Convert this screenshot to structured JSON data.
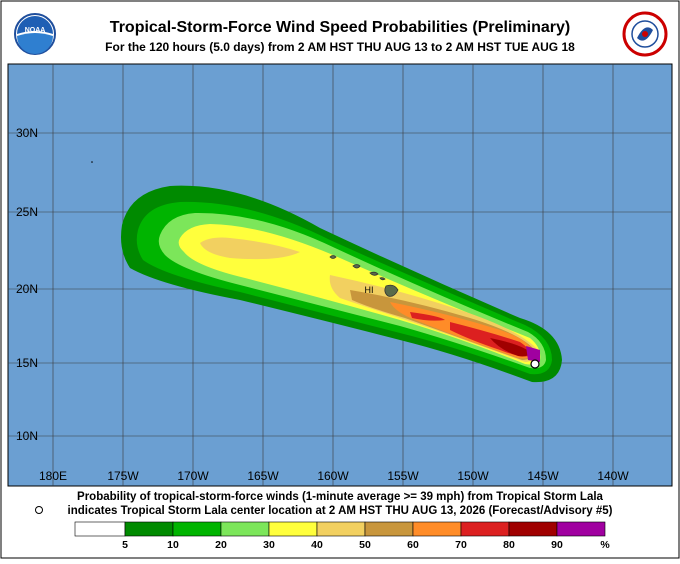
{
  "header": {
    "title": "Tropical-Storm-Force Wind Speed Probabilities (Preliminary)",
    "subtitle": "For the 120 hours (5.0 days) from 2 AM HST THU AUG 13 to 2 AM HST TUE AUG 18",
    "left_logo": "NOAA"
  },
  "map": {
    "lat_labels": [
      "30N",
      "25N",
      "20N",
      "15N",
      "10N"
    ],
    "lon_labels": [
      "180E",
      "175W",
      "170W",
      "165W",
      "160W",
      "155W",
      "150W",
      "145W",
      "140W"
    ],
    "place_label": "HI"
  },
  "caption": {
    "line1": "Probability of tropical-storm-force winds (1-minute average >= 39 mph) from Tropical Storm Lala",
    "line2": "indicates Tropical Storm Lala center location at 2 AM HST THU AUG 13, 2026 (Forecast/Advisory #5)"
  },
  "legend": {
    "colors": [
      "#ffffff",
      "#008a00",
      "#00b400",
      "#7ce65a",
      "#ffff3c",
      "#f2d060",
      "#c8963c",
      "#ff8c28",
      "#dc2020",
      "#a00000",
      "#a000a0"
    ],
    "labels": [
      "5",
      "10",
      "20",
      "30",
      "40",
      "50",
      "60",
      "70",
      "80",
      "90",
      "%"
    ]
  }
}
